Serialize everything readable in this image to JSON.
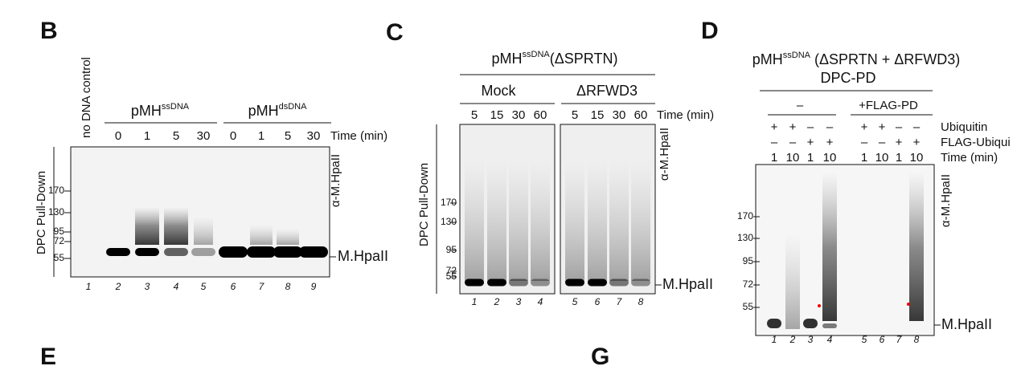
{
  "panels": {
    "B": {
      "label": "B",
      "control_label": "no DNA control",
      "groups": [
        {
          "name": "pMH",
          "sup": "ssDNA"
        },
        {
          "name": "pMH",
          "sup": "dsDNA"
        }
      ],
      "time_label": "Time (min)",
      "times": [
        "0",
        "1",
        "5",
        "30",
        "0",
        "1",
        "5",
        "30"
      ],
      "markers": [
        "170",
        "130",
        "95",
        "72",
        "55"
      ],
      "side_label": "DPC Pull-Down",
      "antibody": "α-M.HpaII",
      "band_label": "M.HpaII",
      "lanes": [
        "1",
        "2",
        "3",
        "4",
        "5",
        "6",
        "7",
        "8",
        "9"
      ]
    },
    "C": {
      "label": "C",
      "title": {
        "name": "pMH",
        "sup": "ssDNA",
        "rest": "(ΔSPRTN)"
      },
      "groups": [
        "Mock",
        "ΔRFWD3"
      ],
      "time_label": "Time (min)",
      "times": [
        "5",
        "15",
        "30",
        "60",
        "5",
        "15",
        "30",
        "60"
      ],
      "markers": [
        "170",
        "130",
        "95",
        "72",
        "55"
      ],
      "side_label": "DPC Pull-Down",
      "antibody": "α-M.HpaII",
      "band_label": "M.HpaII",
      "lanes": [
        "1",
        "2",
        "3",
        "4",
        "5",
        "6",
        "7",
        "8"
      ]
    },
    "D": {
      "label": "D",
      "title": {
        "name": "pMH",
        "sup": "ssDNA",
        "rest": " (ΔSPRTN + ΔRFWD3)"
      },
      "subtitle": "DPC-PD",
      "groups": [
        "–",
        "+FLAG-PD"
      ],
      "rows": [
        {
          "label": "Ubiquitin",
          "values": [
            "+",
            "+",
            "–",
            "–",
            "+",
            "+",
            "–",
            "–"
          ]
        },
        {
          "label": "FLAG-Ubiqui",
          "values": [
            "–",
            "–",
            "+",
            "+",
            "–",
            "–",
            "+",
            "+"
          ]
        },
        {
          "label": "Time (min)",
          "values": [
            "1",
            "10",
            "1",
            "10",
            "1",
            "10",
            "1",
            "10"
          ]
        }
      ],
      "markers": [
        "170",
        "130",
        "95",
        "72",
        "55"
      ],
      "antibody": "α-M.HpaII",
      "band_label": "M.HpaII",
      "lanes": [
        "1",
        "2",
        "3",
        "4",
        "5",
        "6",
        "7",
        "8"
      ]
    },
    "E": {
      "label": "E"
    },
    "G": {
      "label": "G"
    }
  }
}
